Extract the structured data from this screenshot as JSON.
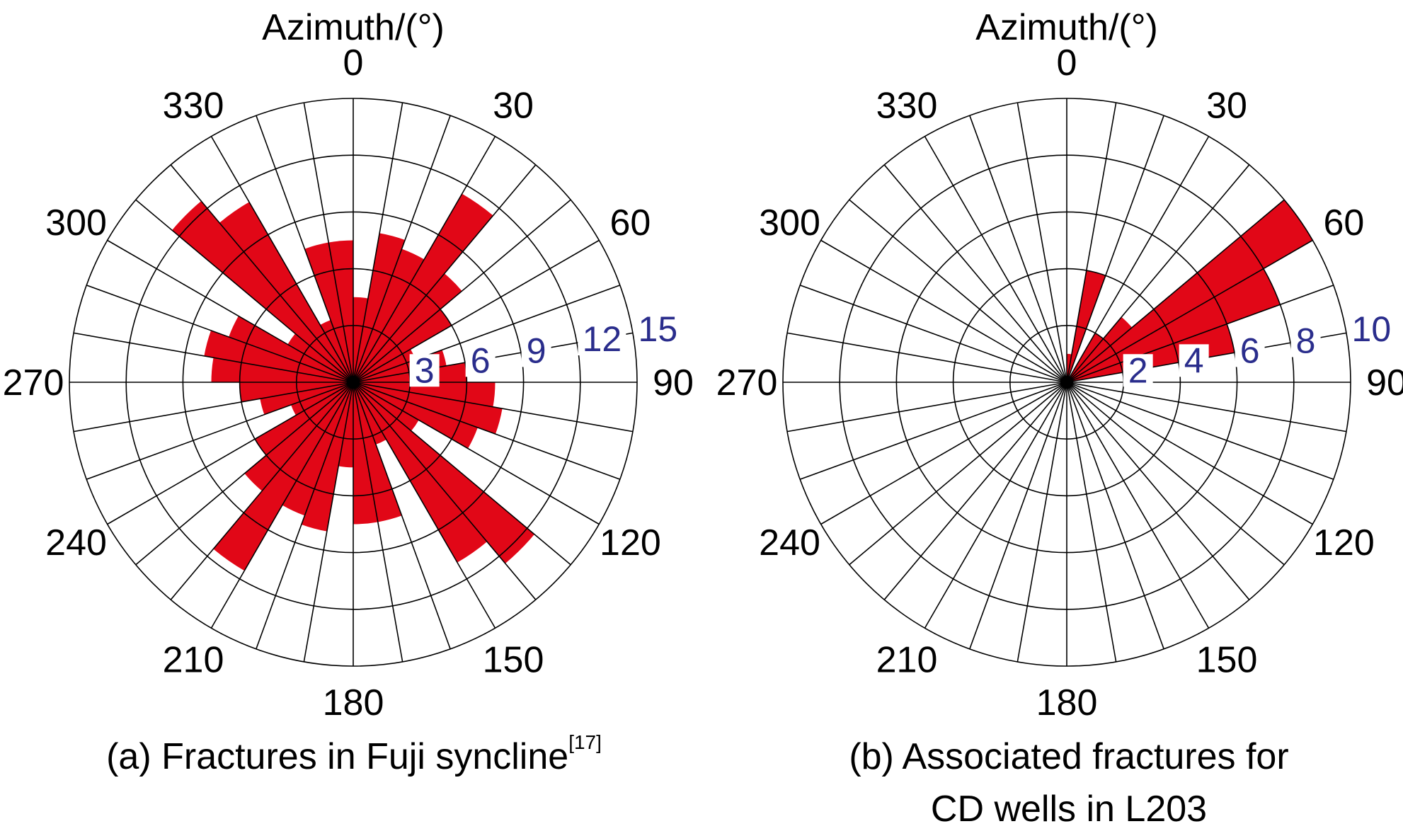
{
  "chart_data": [
    {
      "type": "rose",
      "title": "Azimuth/(°)",
      "caption": "(a) Fractures in Fuji syncline",
      "caption_ref": "[17]",
      "bin_width_deg": 10,
      "angle_ticks": [
        "0",
        "30",
        "60",
        "90",
        "120",
        "150",
        "180",
        "210",
        "240",
        "270",
        "300",
        "330"
      ],
      "radial_ticks": [
        "3",
        "6",
        "9",
        "12",
        "15"
      ],
      "radial_max": 15,
      "values": [
        4.5,
        8,
        7.5,
        11.5,
        7.5,
        6,
        3.5,
        5,
        6,
        7.5,
        8,
        7,
        4,
        12.5,
        11,
        3.5,
        7.5,
        7.5,
        4.5,
        8,
        7.5,
        11.5,
        7.5,
        6,
        3.5,
        5,
        6,
        7.5,
        8,
        7,
        4,
        12.5,
        11,
        3.5,
        7.5,
        7.5
      ]
    },
    {
      "type": "rose",
      "title": "Azimuth/(°)",
      "caption_line1": "(b) Associated fractures for",
      "caption_line2": "CD wells in L203",
      "bin_width_deg": 10,
      "angle_ticks": [
        "0",
        "30",
        "60",
        "90",
        "120",
        "150",
        "180",
        "210",
        "240",
        "270",
        "300",
        "330"
      ],
      "radial_ticks": [
        "2",
        "4",
        "6",
        "8",
        "10"
      ],
      "radial_max": 10,
      "values": [
        1,
        4,
        0,
        2,
        3,
        10,
        8,
        6,
        0,
        0,
        0,
        0,
        0,
        0,
        0,
        0,
        0,
        0,
        0,
        0,
        0,
        0,
        0,
        0,
        0,
        0,
        0,
        0,
        0,
        0,
        0,
        0,
        0,
        0,
        0,
        0
      ]
    }
  ],
  "colors": {
    "bar": "#e10717",
    "radial_label": "#2a2d8c",
    "grid": "#000000"
  }
}
